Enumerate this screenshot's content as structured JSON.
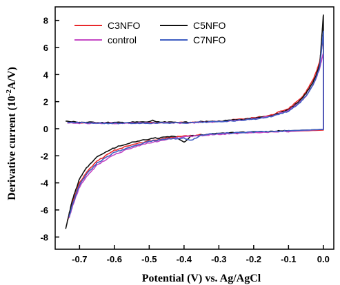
{
  "chart_data": {
    "type": "line",
    "title": "",
    "xlabel": "Potential (V) vs. Ag/AgCl",
    "ylabel_main": "Derivative current (10",
    "ylabel_exp": "-2",
    "ylabel_unit": "A/V)",
    "xlim": [
      -0.77,
      0.03
    ],
    "ylim": [
      -8.9,
      9.0
    ],
    "x_ticks": [
      -0.7,
      -0.6,
      -0.5,
      -0.4,
      -0.3,
      -0.2,
      -0.1,
      0.0
    ],
    "x_tick_labels": [
      "-0.7",
      "-0.6",
      "-0.5",
      "-0.4",
      "-0.3",
      "-0.2",
      "-0.1",
      "0.0"
    ],
    "y_ticks": [
      -8,
      -6,
      -4,
      -2,
      0,
      2,
      4,
      6,
      8
    ],
    "y_tick_labels": [
      "-8",
      "-6",
      "-4",
      "-2",
      "0",
      "2",
      "4",
      "6",
      "8"
    ],
    "grid": false,
    "legend_position": "top-left",
    "series": [
      {
        "name": "C3NFO",
        "color": "#e8282b",
        "upper": [
          [
            -0.735,
            0.5
          ],
          [
            -0.7,
            0.45
          ],
          [
            -0.6,
            0.42
          ],
          [
            -0.5,
            0.45
          ],
          [
            -0.4,
            0.45
          ],
          [
            -0.3,
            0.55
          ],
          [
            -0.2,
            0.8
          ],
          [
            -0.15,
            1.0
          ],
          [
            -0.1,
            1.5
          ],
          [
            -0.07,
            2.1
          ],
          [
            -0.05,
            2.7
          ],
          [
            -0.03,
            3.6
          ],
          [
            -0.02,
            4.2
          ],
          [
            -0.01,
            5.0
          ],
          [
            0.0,
            6.8
          ]
        ],
        "lower": [
          [
            0.0,
            6.8
          ],
          [
            0.0,
            -0.1
          ],
          [
            -0.1,
            -0.2
          ],
          [
            -0.2,
            -0.25
          ],
          [
            -0.3,
            -0.35
          ],
          [
            -0.4,
            -0.55
          ],
          [
            -0.45,
            -0.7
          ],
          [
            -0.5,
            -0.9
          ],
          [
            -0.55,
            -1.2
          ],
          [
            -0.6,
            -1.6
          ],
          [
            -0.65,
            -2.4
          ],
          [
            -0.68,
            -3.2
          ],
          [
            -0.7,
            -4.0
          ],
          [
            -0.72,
            -5.4
          ],
          [
            -0.735,
            -6.8
          ]
        ]
      },
      {
        "name": "C5NFO",
        "color": "#111111",
        "upper": [
          [
            -0.74,
            0.55
          ],
          [
            -0.7,
            0.48
          ],
          [
            -0.6,
            0.45
          ],
          [
            -0.5,
            0.5
          ],
          [
            -0.49,
            0.65
          ],
          [
            -0.48,
            0.48
          ],
          [
            -0.4,
            0.47
          ],
          [
            -0.3,
            0.55
          ],
          [
            -0.2,
            0.75
          ],
          [
            -0.15,
            0.95
          ],
          [
            -0.1,
            1.4
          ],
          [
            -0.07,
            2.0
          ],
          [
            -0.05,
            2.6
          ],
          [
            -0.03,
            3.4
          ],
          [
            -0.02,
            4.0
          ],
          [
            -0.01,
            4.8
          ],
          [
            0.0,
            8.4
          ]
        ],
        "lower": [
          [
            0.0,
            8.4
          ],
          [
            0.0,
            -0.05
          ],
          [
            -0.1,
            -0.15
          ],
          [
            -0.2,
            -0.25
          ],
          [
            -0.3,
            -0.35
          ],
          [
            -0.35,
            -0.45
          ],
          [
            -0.38,
            -0.55
          ],
          [
            -0.39,
            -0.8
          ],
          [
            -0.4,
            -0.98
          ],
          [
            -0.41,
            -0.8
          ],
          [
            -0.43,
            -0.55
          ],
          [
            -0.5,
            -0.75
          ],
          [
            -0.55,
            -1.0
          ],
          [
            -0.6,
            -1.4
          ],
          [
            -0.65,
            -2.1
          ],
          [
            -0.68,
            -2.9
          ],
          [
            -0.7,
            -3.7
          ],
          [
            -0.72,
            -5.2
          ],
          [
            -0.74,
            -7.4
          ]
        ]
      },
      {
        "name": "control",
        "color": "#c447c4",
        "upper": [
          [
            -0.735,
            0.45
          ],
          [
            -0.7,
            0.42
          ],
          [
            -0.6,
            0.4
          ],
          [
            -0.5,
            0.42
          ],
          [
            -0.4,
            0.42
          ],
          [
            -0.3,
            0.52
          ],
          [
            -0.2,
            0.72
          ],
          [
            -0.15,
            0.92
          ],
          [
            -0.1,
            1.35
          ],
          [
            -0.07,
            1.9
          ],
          [
            -0.05,
            2.4
          ],
          [
            -0.03,
            3.2
          ],
          [
            -0.02,
            3.8
          ],
          [
            -0.01,
            4.5
          ],
          [
            0.0,
            5.6
          ]
        ],
        "lower": [
          [
            0.0,
            5.6
          ],
          [
            0.0,
            -0.05
          ],
          [
            -0.1,
            -0.2
          ],
          [
            -0.2,
            -0.3
          ],
          [
            -0.3,
            -0.4
          ],
          [
            -0.4,
            -0.6
          ],
          [
            -0.45,
            -0.8
          ],
          [
            -0.5,
            -1.05
          ],
          [
            -0.55,
            -1.4
          ],
          [
            -0.6,
            -1.9
          ],
          [
            -0.65,
            -2.7
          ],
          [
            -0.68,
            -3.5
          ],
          [
            -0.7,
            -4.3
          ],
          [
            -0.72,
            -5.7
          ],
          [
            -0.73,
            -6.6
          ]
        ]
      },
      {
        "name": "C7NFO",
        "color": "#3d5cc2",
        "upper": [
          [
            -0.735,
            0.45
          ],
          [
            -0.7,
            0.45
          ],
          [
            -0.6,
            0.4
          ],
          [
            -0.5,
            0.42
          ],
          [
            -0.4,
            0.43
          ],
          [
            -0.3,
            0.52
          ],
          [
            -0.2,
            0.7
          ],
          [
            -0.15,
            0.9
          ],
          [
            -0.1,
            1.3
          ],
          [
            -0.07,
            1.85
          ],
          [
            -0.05,
            2.4
          ],
          [
            -0.03,
            3.2
          ],
          [
            -0.02,
            3.8
          ],
          [
            -0.01,
            4.6
          ],
          [
            0.0,
            7.2
          ]
        ],
        "lower": [
          [
            0.0,
            7.2
          ],
          [
            0.0,
            -0.05
          ],
          [
            -0.1,
            -0.15
          ],
          [
            -0.2,
            -0.25
          ],
          [
            -0.3,
            -0.35
          ],
          [
            -0.35,
            -0.45
          ],
          [
            -0.37,
            -0.75
          ],
          [
            -0.38,
            -0.85
          ],
          [
            -0.4,
            -0.7
          ],
          [
            -0.45,
            -0.75
          ],
          [
            -0.5,
            -0.95
          ],
          [
            -0.55,
            -1.3
          ],
          [
            -0.6,
            -1.75
          ],
          [
            -0.65,
            -2.55
          ],
          [
            -0.68,
            -3.35
          ],
          [
            -0.7,
            -4.15
          ],
          [
            -0.72,
            -5.6
          ],
          [
            -0.73,
            -6.5
          ]
        ]
      }
    ]
  }
}
